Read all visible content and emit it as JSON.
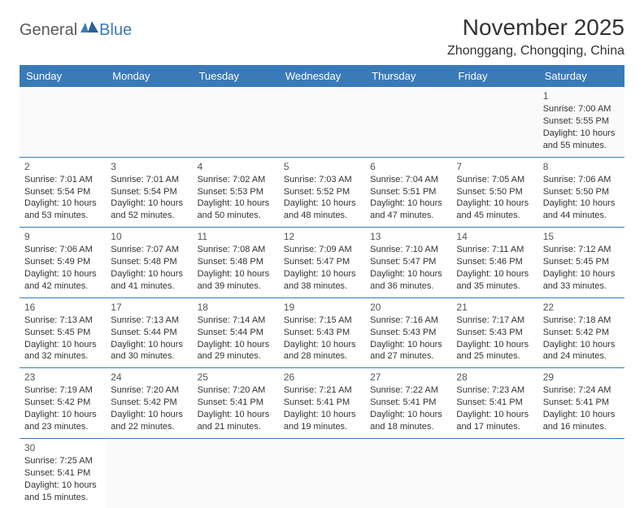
{
  "logo": {
    "general": "General",
    "blue": "Blue"
  },
  "title": "November 2025",
  "subtitle": "Zhonggang, Chongqing, China",
  "colors": {
    "header_bg": "#3a7ab8",
    "header_text": "#ffffff",
    "border": "#3a7ab8",
    "text": "#333333",
    "logo_gray": "#5a5a5a",
    "logo_blue": "#3a7ab8"
  },
  "day_headers": [
    "Sunday",
    "Monday",
    "Tuesday",
    "Wednesday",
    "Thursday",
    "Friday",
    "Saturday"
  ],
  "weeks": [
    [
      null,
      null,
      null,
      null,
      null,
      null,
      {
        "n": "1",
        "sr": "Sunrise: 7:00 AM",
        "ss": "Sunset: 5:55 PM",
        "dl": "Daylight: 10 hours and 55 minutes."
      }
    ],
    [
      {
        "n": "2",
        "sr": "Sunrise: 7:01 AM",
        "ss": "Sunset: 5:54 PM",
        "dl": "Daylight: 10 hours and 53 minutes."
      },
      {
        "n": "3",
        "sr": "Sunrise: 7:01 AM",
        "ss": "Sunset: 5:54 PM",
        "dl": "Daylight: 10 hours and 52 minutes."
      },
      {
        "n": "4",
        "sr": "Sunrise: 7:02 AM",
        "ss": "Sunset: 5:53 PM",
        "dl": "Daylight: 10 hours and 50 minutes."
      },
      {
        "n": "5",
        "sr": "Sunrise: 7:03 AM",
        "ss": "Sunset: 5:52 PM",
        "dl": "Daylight: 10 hours and 48 minutes."
      },
      {
        "n": "6",
        "sr": "Sunrise: 7:04 AM",
        "ss": "Sunset: 5:51 PM",
        "dl": "Daylight: 10 hours and 47 minutes."
      },
      {
        "n": "7",
        "sr": "Sunrise: 7:05 AM",
        "ss": "Sunset: 5:50 PM",
        "dl": "Daylight: 10 hours and 45 minutes."
      },
      {
        "n": "8",
        "sr": "Sunrise: 7:06 AM",
        "ss": "Sunset: 5:50 PM",
        "dl": "Daylight: 10 hours and 44 minutes."
      }
    ],
    [
      {
        "n": "9",
        "sr": "Sunrise: 7:06 AM",
        "ss": "Sunset: 5:49 PM",
        "dl": "Daylight: 10 hours and 42 minutes."
      },
      {
        "n": "10",
        "sr": "Sunrise: 7:07 AM",
        "ss": "Sunset: 5:48 PM",
        "dl": "Daylight: 10 hours and 41 minutes."
      },
      {
        "n": "11",
        "sr": "Sunrise: 7:08 AM",
        "ss": "Sunset: 5:48 PM",
        "dl": "Daylight: 10 hours and 39 minutes."
      },
      {
        "n": "12",
        "sr": "Sunrise: 7:09 AM",
        "ss": "Sunset: 5:47 PM",
        "dl": "Daylight: 10 hours and 38 minutes."
      },
      {
        "n": "13",
        "sr": "Sunrise: 7:10 AM",
        "ss": "Sunset: 5:47 PM",
        "dl": "Daylight: 10 hours and 36 minutes."
      },
      {
        "n": "14",
        "sr": "Sunrise: 7:11 AM",
        "ss": "Sunset: 5:46 PM",
        "dl": "Daylight: 10 hours and 35 minutes."
      },
      {
        "n": "15",
        "sr": "Sunrise: 7:12 AM",
        "ss": "Sunset: 5:45 PM",
        "dl": "Daylight: 10 hours and 33 minutes."
      }
    ],
    [
      {
        "n": "16",
        "sr": "Sunrise: 7:13 AM",
        "ss": "Sunset: 5:45 PM",
        "dl": "Daylight: 10 hours and 32 minutes."
      },
      {
        "n": "17",
        "sr": "Sunrise: 7:13 AM",
        "ss": "Sunset: 5:44 PM",
        "dl": "Daylight: 10 hours and 30 minutes."
      },
      {
        "n": "18",
        "sr": "Sunrise: 7:14 AM",
        "ss": "Sunset: 5:44 PM",
        "dl": "Daylight: 10 hours and 29 minutes."
      },
      {
        "n": "19",
        "sr": "Sunrise: 7:15 AM",
        "ss": "Sunset: 5:43 PM",
        "dl": "Daylight: 10 hours and 28 minutes."
      },
      {
        "n": "20",
        "sr": "Sunrise: 7:16 AM",
        "ss": "Sunset: 5:43 PM",
        "dl": "Daylight: 10 hours and 27 minutes."
      },
      {
        "n": "21",
        "sr": "Sunrise: 7:17 AM",
        "ss": "Sunset: 5:43 PM",
        "dl": "Daylight: 10 hours and 25 minutes."
      },
      {
        "n": "22",
        "sr": "Sunrise: 7:18 AM",
        "ss": "Sunset: 5:42 PM",
        "dl": "Daylight: 10 hours and 24 minutes."
      }
    ],
    [
      {
        "n": "23",
        "sr": "Sunrise: 7:19 AM",
        "ss": "Sunset: 5:42 PM",
        "dl": "Daylight: 10 hours and 23 minutes."
      },
      {
        "n": "24",
        "sr": "Sunrise: 7:20 AM",
        "ss": "Sunset: 5:42 PM",
        "dl": "Daylight: 10 hours and 22 minutes."
      },
      {
        "n": "25",
        "sr": "Sunrise: 7:20 AM",
        "ss": "Sunset: 5:41 PM",
        "dl": "Daylight: 10 hours and 21 minutes."
      },
      {
        "n": "26",
        "sr": "Sunrise: 7:21 AM",
        "ss": "Sunset: 5:41 PM",
        "dl": "Daylight: 10 hours and 19 minutes."
      },
      {
        "n": "27",
        "sr": "Sunrise: 7:22 AM",
        "ss": "Sunset: 5:41 PM",
        "dl": "Daylight: 10 hours and 18 minutes."
      },
      {
        "n": "28",
        "sr": "Sunrise: 7:23 AM",
        "ss": "Sunset: 5:41 PM",
        "dl": "Daylight: 10 hours and 17 minutes."
      },
      {
        "n": "29",
        "sr": "Sunrise: 7:24 AM",
        "ss": "Sunset: 5:41 PM",
        "dl": "Daylight: 10 hours and 16 minutes."
      }
    ],
    [
      {
        "n": "30",
        "sr": "Sunrise: 7:25 AM",
        "ss": "Sunset: 5:41 PM",
        "dl": "Daylight: 10 hours and 15 minutes."
      },
      null,
      null,
      null,
      null,
      null,
      null
    ]
  ]
}
